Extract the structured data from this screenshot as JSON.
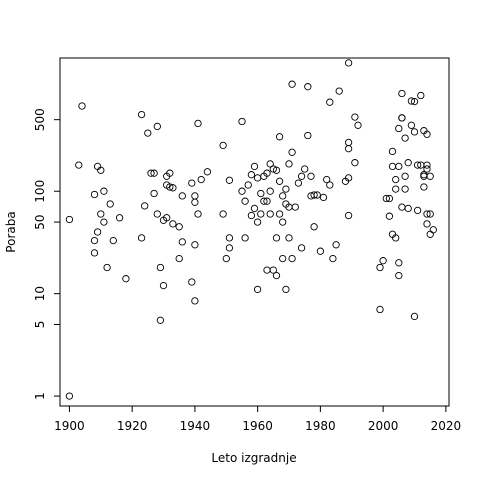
{
  "chart_data": {
    "type": "scatter",
    "title": "",
    "xlabel": "Leto izgradnje",
    "ylabel": "Poraba",
    "xlim": [
      1897,
      2021
    ],
    "ylim": [
      0.8,
      2000
    ],
    "y_scale": "log",
    "x_ticks": [
      {
        "value": 1900,
        "label": "1900"
      },
      {
        "value": 1920,
        "label": "1920"
      },
      {
        "value": 1940,
        "label": "1940"
      },
      {
        "value": 1960,
        "label": "1960"
      },
      {
        "value": 1980,
        "label": "1980"
      },
      {
        "value": 2000,
        "label": "2000"
      },
      {
        "value": 2020,
        "label": "2020"
      }
    ],
    "y_ticks": [
      {
        "value": 1,
        "label": "1"
      },
      {
        "value": 5,
        "label": "5"
      },
      {
        "value": 10,
        "label": "10"
      },
      {
        "value": 50,
        "label": "50"
      },
      {
        "value": 100,
        "label": "100"
      },
      {
        "value": 500,
        "label": "500"
      }
    ],
    "grid": false,
    "marker": "open-circle",
    "marker_color": "#000000",
    "points": [
      [
        1900,
        53
      ],
      [
        1900,
        1
      ],
      [
        1903,
        180
      ],
      [
        1904,
        680
      ],
      [
        1908,
        25
      ],
      [
        1908,
        33
      ],
      [
        1908,
        93
      ],
      [
        1909,
        175
      ],
      [
        1909,
        40
      ],
      [
        1910,
        160
      ],
      [
        1910,
        60
      ],
      [
        1911,
        50
      ],
      [
        1911,
        100
      ],
      [
        1912,
        18
      ],
      [
        1913,
        75
      ],
      [
        1914,
        33
      ],
      [
        1916,
        55
      ],
      [
        1918,
        14
      ],
      [
        1923,
        35
      ],
      [
        1923,
        560
      ],
      [
        1924,
        72
      ],
      [
        1925,
        370
      ],
      [
        1926,
        150
      ],
      [
        1927,
        150
      ],
      [
        1927,
        95
      ],
      [
        1928,
        430
      ],
      [
        1928,
        60
      ],
      [
        1929,
        18
      ],
      [
        1929,
        5.5
      ],
      [
        1930,
        12
      ],
      [
        1930,
        52
      ],
      [
        1931,
        55
      ],
      [
        1931,
        115
      ],
      [
        1931,
        140
      ],
      [
        1932,
        150
      ],
      [
        1932,
        110
      ],
      [
        1933,
        48
      ],
      [
        1933,
        108
      ],
      [
        1935,
        22
      ],
      [
        1935,
        45
      ],
      [
        1936,
        32
      ],
      [
        1936,
        90
      ],
      [
        1939,
        120
      ],
      [
        1939,
        13
      ],
      [
        1940,
        8.5
      ],
      [
        1940,
        30
      ],
      [
        1940,
        90
      ],
      [
        1940,
        78
      ],
      [
        1941,
        460
      ],
      [
        1941,
        60
      ],
      [
        1942,
        130
      ],
      [
        1944,
        155
      ],
      [
        1949,
        280
      ],
      [
        1949,
        60
      ],
      [
        1950,
        22
      ],
      [
        1951,
        35
      ],
      [
        1951,
        28
      ],
      [
        1951,
        128
      ],
      [
        1955,
        100
      ],
      [
        1955,
        480
      ],
      [
        1956,
        35
      ],
      [
        1956,
        80
      ],
      [
        1957,
        115
      ],
      [
        1958,
        145
      ],
      [
        1958,
        58
      ],
      [
        1959,
        68
      ],
      [
        1959,
        175
      ],
      [
        1960,
        11
      ],
      [
        1960,
        50
      ],
      [
        1960,
        135
      ],
      [
        1961,
        60
      ],
      [
        1961,
        95
      ],
      [
        1962,
        80
      ],
      [
        1962,
        140
      ],
      [
        1963,
        150
      ],
      [
        1963,
        17
      ],
      [
        1963,
        80
      ],
      [
        1964,
        60
      ],
      [
        1964,
        100
      ],
      [
        1964,
        185
      ],
      [
        1965,
        17
      ],
      [
        1965,
        165
      ],
      [
        1966,
        35
      ],
      [
        1966,
        160
      ],
      [
        1966,
        15
      ],
      [
        1967,
        60
      ],
      [
        1967,
        125
      ],
      [
        1967,
        340
      ],
      [
        1968,
        22
      ],
      [
        1968,
        50
      ],
      [
        1968,
        90
      ],
      [
        1969,
        11
      ],
      [
        1969,
        75
      ],
      [
        1969,
        105
      ],
      [
        1970,
        70
      ],
      [
        1970,
        35
      ],
      [
        1970,
        185
      ],
      [
        1971,
        240
      ],
      [
        1971,
        1110
      ],
      [
        1971,
        22
      ],
      [
        1972,
        70
      ],
      [
        1973,
        120
      ],
      [
        1974,
        140
      ],
      [
        1974,
        28
      ],
      [
        1975,
        165
      ],
      [
        1976,
        1050
      ],
      [
        1976,
        350
      ],
      [
        1977,
        90
      ],
      [
        1977,
        140
      ],
      [
        1978,
        45
      ],
      [
        1978,
        92
      ],
      [
        1979,
        92
      ],
      [
        1980,
        26
      ],
      [
        1981,
        87
      ],
      [
        1982,
        130
      ],
      [
        1983,
        740
      ],
      [
        1983,
        115
      ],
      [
        1984,
        22
      ],
      [
        1985,
        30
      ],
      [
        1986,
        950
      ],
      [
        1988,
        125
      ],
      [
        1989,
        260
      ],
      [
        1989,
        300
      ],
      [
        1989,
        58
      ],
      [
        1989,
        1790
      ],
      [
        1989,
        135
      ],
      [
        1991,
        530
      ],
      [
        1991,
        190
      ],
      [
        1992,
        440
      ],
      [
        1999,
        18
      ],
      [
        1999,
        7
      ],
      [
        2000,
        21
      ],
      [
        2001,
        85
      ],
      [
        2002,
        85
      ],
      [
        2002,
        57
      ],
      [
        2003,
        38
      ],
      [
        2003,
        245
      ],
      [
        2003,
        175
      ],
      [
        2004,
        35
      ],
      [
        2004,
        105
      ],
      [
        2004,
        130
      ],
      [
        2005,
        20
      ],
      [
        2005,
        15
      ],
      [
        2005,
        175
      ],
      [
        2005,
        410
      ],
      [
        2006,
        520
      ],
      [
        2006,
        900
      ],
      [
        2006,
        520
      ],
      [
        2006,
        70
      ],
      [
        2007,
        330
      ],
      [
        2007,
        140
      ],
      [
        2007,
        105
      ],
      [
        2008,
        68
      ],
      [
        2008,
        190
      ],
      [
        2009,
        440
      ],
      [
        2009,
        760
      ],
      [
        2010,
        6
      ],
      [
        2010,
        750
      ],
      [
        2010,
        380
      ],
      [
        2011,
        180
      ],
      [
        2011,
        65
      ],
      [
        2012,
        860
      ],
      [
        2012,
        180
      ],
      [
        2013,
        140
      ],
      [
        2013,
        110
      ],
      [
        2013,
        390
      ],
      [
        2013,
        145
      ],
      [
        2014,
        360
      ],
      [
        2014,
        60
      ],
      [
        2014,
        48
      ],
      [
        2014,
        180
      ],
      [
        2014,
        165
      ],
      [
        2015,
        60
      ],
      [
        2015,
        38
      ],
      [
        2015,
        140
      ],
      [
        2016,
        42
      ]
    ]
  }
}
